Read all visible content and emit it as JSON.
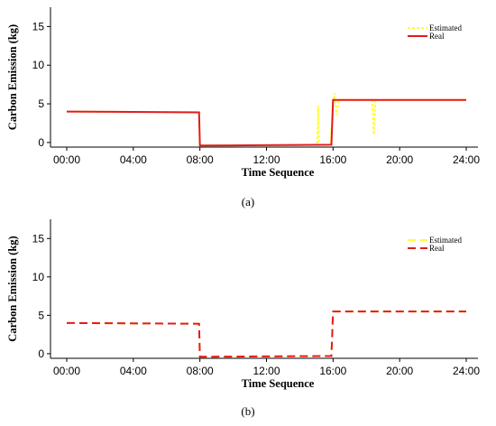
{
  "chart_data": [
    {
      "type": "line",
      "panel_label": "(a)",
      "xlabel": "Time Sequence",
      "ylabel": "Carbon Emission (kg)",
      "x_ticks": [
        "00:00",
        "04:00",
        "08:00",
        "12:00",
        "16:00",
        "20:00",
        "24:00"
      ],
      "x_tick_hours": [
        0,
        4,
        8,
        12,
        16,
        20,
        24
      ],
      "xlim": [
        0,
        24
      ],
      "y_ticks": [
        0,
        5,
        10,
        15
      ],
      "ylim": [
        -0.6,
        17.5
      ],
      "grid": false,
      "legend_position": "top-right",
      "series": [
        {
          "name": "Estimated",
          "color": "#ffff33",
          "style": "dotted",
          "x": [
            0,
            7.95,
            8.0,
            15.05,
            15.1,
            15.15,
            15.2,
            15.85,
            16.0,
            16.1,
            16.2,
            16.35,
            18.35,
            18.45,
            18.55,
            24
          ],
          "y": [
            4.0,
            3.9,
            -0.4,
            -0.3,
            4.8,
            -0.3,
            -0.3,
            -0.3,
            5.4,
            6.4,
            3.5,
            5.5,
            5.5,
            1.0,
            5.5,
            5.5
          ]
        },
        {
          "name": "Real",
          "color": "#e41a1c",
          "style": "solid",
          "x": [
            0,
            7.95,
            8.0,
            15.9,
            16.0,
            24
          ],
          "y": [
            4.0,
            3.9,
            -0.4,
            -0.3,
            5.5,
            5.5
          ]
        }
      ]
    },
    {
      "type": "line",
      "panel_label": "(b)",
      "xlabel": "Time Sequence",
      "ylabel": "Carbon Emission (kg)",
      "x_ticks": [
        "00:00",
        "04:00",
        "08:00",
        "12:00",
        "16:00",
        "20:00",
        "24:00"
      ],
      "x_tick_hours": [
        0,
        4,
        8,
        12,
        16,
        20,
        24
      ],
      "xlim": [
        0,
        24
      ],
      "y_ticks": [
        0,
        5,
        10,
        15
      ],
      "ylim": [
        -0.6,
        17.5
      ],
      "grid": false,
      "legend_position": "top-right",
      "series": [
        {
          "name": "Estimated",
          "color": "#ffff33",
          "style": "dashed",
          "x": [
            0,
            7.95,
            8.0,
            15.9,
            16.0,
            24
          ],
          "y": [
            4.0,
            3.9,
            -0.4,
            -0.3,
            5.5,
            5.5
          ]
        },
        {
          "name": "Real",
          "color": "#e41a1c",
          "style": "dashed",
          "x": [
            0,
            7.95,
            8.0,
            15.9,
            16.0,
            24
          ],
          "y": [
            4.0,
            3.9,
            -0.4,
            -0.3,
            5.5,
            5.5
          ]
        }
      ]
    }
  ]
}
